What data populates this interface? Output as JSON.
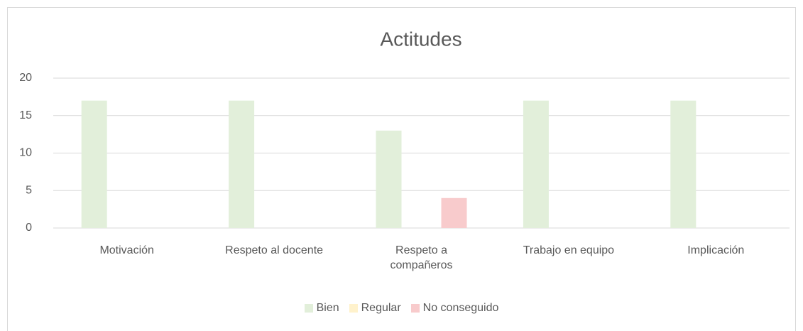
{
  "chart_data": {
    "type": "bar",
    "title": "Actitudes",
    "categories": [
      "Motivación",
      "Respeto al docente",
      "Respeto a compañeros",
      "Trabajo en equipo",
      "Implicación"
    ],
    "series": [
      {
        "name": "Bien",
        "color": "#e2efda",
        "values": [
          17,
          17,
          13,
          17,
          17
        ]
      },
      {
        "name": "Regular",
        "color": "#fff2cc",
        "values": [
          0,
          0,
          0,
          0,
          0
        ]
      },
      {
        "name": "No conseguido",
        "color": "#f8cbcc",
        "values": [
          0,
          0,
          4,
          0,
          0
        ]
      }
    ],
    "ylim": [
      0,
      20
    ],
    "yticks": [
      0,
      5,
      10,
      15,
      20
    ],
    "grid": true,
    "legend": "bottom"
  }
}
